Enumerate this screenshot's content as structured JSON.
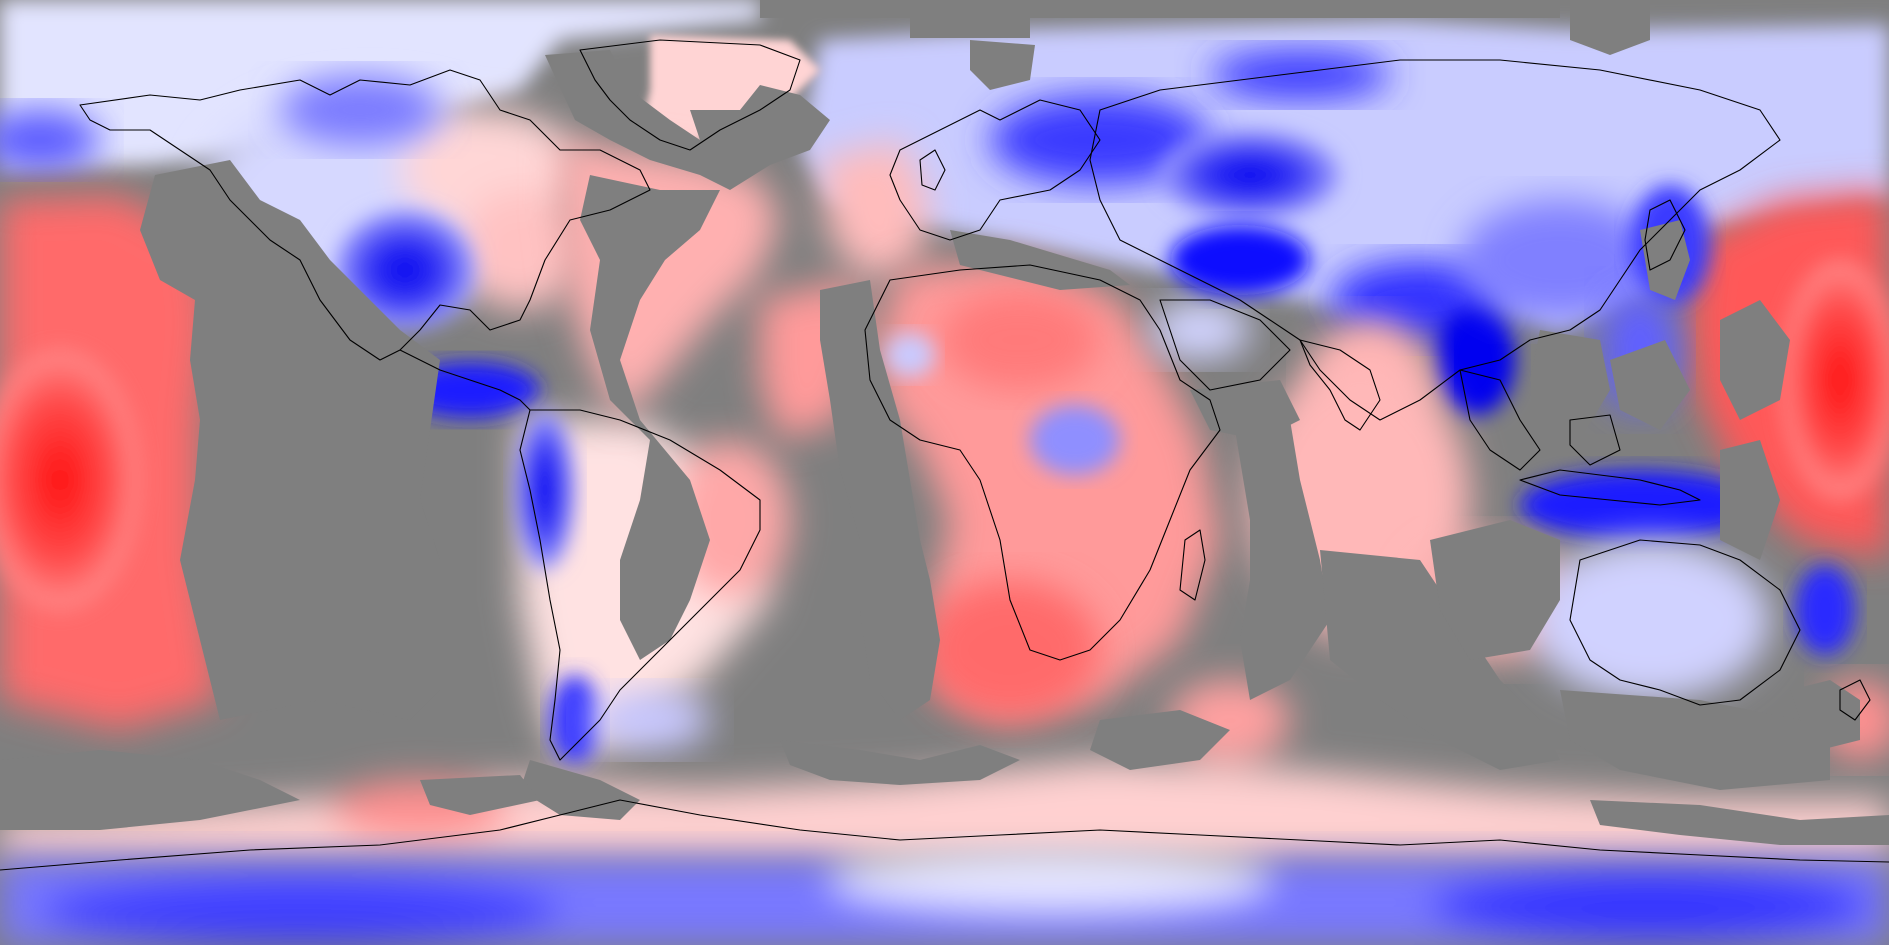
{
  "map": {
    "projection": "equirectangular",
    "missing_data_color": "#7f7f7f",
    "colorscale": {
      "negative": "#0000ff",
      "neutral": "#ffffff",
      "positive": "#ff0000"
    },
    "coastline_color": "#000000",
    "features": [
      {
        "name": "west-pacific-warm-anomaly",
        "sign": "positive",
        "strength": 0.9
      },
      {
        "name": "central-pacific-warm-anomaly",
        "sign": "positive",
        "strength": 0.85
      },
      {
        "name": "south-pacific-warm-anomaly",
        "sign": "positive",
        "strength": 0.7
      },
      {
        "name": "north-america-cold-anomaly",
        "sign": "negative",
        "strength": 0.95
      },
      {
        "name": "arctic-canada-cold-anomaly",
        "sign": "negative",
        "strength": 0.5
      },
      {
        "name": "central-america-cold-anomaly",
        "sign": "negative",
        "strength": 0.85
      },
      {
        "name": "andes-cold-anomaly",
        "sign": "negative",
        "strength": 0.9
      },
      {
        "name": "patagonia-cold-anomaly",
        "sign": "negative",
        "strength": 0.7
      },
      {
        "name": "greenland-warm-anomaly",
        "sign": "positive",
        "strength": 0.35
      },
      {
        "name": "north-atlantic-warm-anomaly",
        "sign": "positive",
        "strength": 0.55
      },
      {
        "name": "africa-warm-anomaly",
        "sign": "positive",
        "strength": 0.55
      },
      {
        "name": "southern-africa-warm-anomaly",
        "sign": "positive",
        "strength": 0.6
      },
      {
        "name": "central-africa-cold-anomaly",
        "sign": "negative",
        "strength": 0.45
      },
      {
        "name": "siberia-cold-anomaly",
        "sign": "negative",
        "strength": 0.9
      },
      {
        "name": "scandinavia-cold-anomaly",
        "sign": "negative",
        "strength": 0.75
      },
      {
        "name": "middle-east-cold-anomaly",
        "sign": "negative",
        "strength": 0.85
      },
      {
        "name": "southeast-asia-cold-anomaly",
        "sign": "negative",
        "strength": 0.9
      },
      {
        "name": "indonesia-cold-anomaly",
        "sign": "negative",
        "strength": 0.85
      },
      {
        "name": "indian-ocean-warm-anomaly",
        "sign": "positive",
        "strength": 0.45
      },
      {
        "name": "australia-cold-anomaly",
        "sign": "negative",
        "strength": 0.35
      },
      {
        "name": "east-australia-cold-anomaly",
        "sign": "negative",
        "strength": 0.7
      },
      {
        "name": "southern-ocean-warm-anomaly",
        "sign": "positive",
        "strength": 0.45
      },
      {
        "name": "antarctica-cold-anomaly",
        "sign": "negative",
        "strength": 0.65
      }
    ]
  }
}
